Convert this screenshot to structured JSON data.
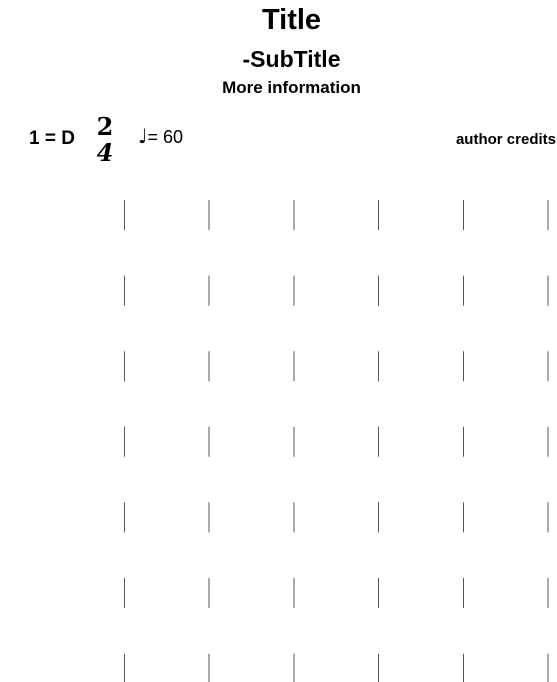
{
  "score": {
    "title": "Title",
    "subtitle": "-SubTitle",
    "info": "More information",
    "key": "1 = D",
    "time_signature": {
      "numerator": "2",
      "denominator": "4"
    },
    "tempo": {
      "note_symbol": "♩",
      "text": "= 60"
    },
    "credits": "author credits",
    "staff": {
      "systems": 7,
      "barlines_per_system": 6
    }
  }
}
